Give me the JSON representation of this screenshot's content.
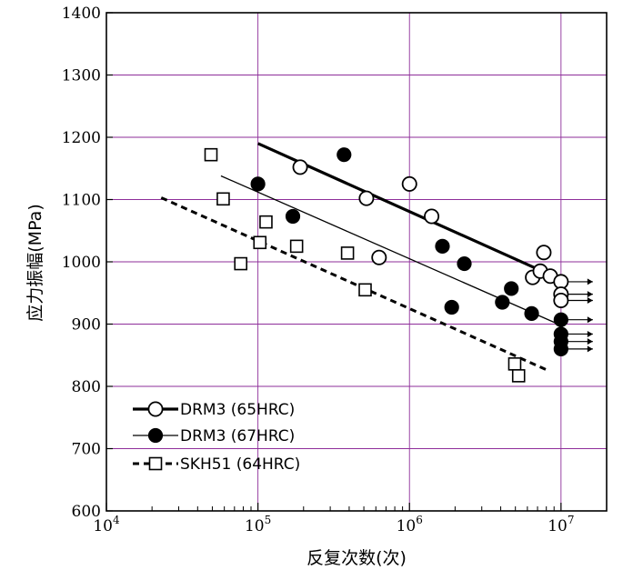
{
  "chart_data": {
    "type": "scatter",
    "xlabel": "反复次数(次)",
    "ylabel": "应力振幅(MPa)",
    "x_scale": "log",
    "xlim": [
      10000,
      20000000
    ],
    "ylim": [
      600,
      1400
    ],
    "x_ticks": [
      {
        "value": 10000,
        "base": "10",
        "exp": "4"
      },
      {
        "value": 100000,
        "base": "10",
        "exp": "5"
      },
      {
        "value": 1000000,
        "base": "10",
        "exp": "6"
      },
      {
        "value": 10000000,
        "base": "10",
        "exp": "7"
      }
    ],
    "y_ticks": [
      "600",
      "700",
      "800",
      "900",
      "1000",
      "1100",
      "1200",
      "1300",
      "1400"
    ],
    "grid": true,
    "legend_position": "bottom-left",
    "runout_x": 10000000,
    "series": [
      {
        "name": "DRM3 (65HRC)",
        "marker": "open-circle",
        "line_style": "thick-solid",
        "points": [
          {
            "x": 190000,
            "y": 1152
          },
          {
            "x": 520000,
            "y": 1102
          },
          {
            "x": 630000,
            "y": 1007
          },
          {
            "x": 1000000,
            "y": 1125
          },
          {
            "x": 1400000,
            "y": 1073
          },
          {
            "x": 6500000,
            "y": 975
          },
          {
            "x": 7300000,
            "y": 985
          },
          {
            "x": 7700000,
            "y": 1015
          },
          {
            "x": 8500000,
            "y": 977
          },
          {
            "x": 10000000,
            "y": 968,
            "runout": true
          },
          {
            "x": 10000000,
            "y": 948,
            "runout": true
          },
          {
            "x": 10000000,
            "y": 938,
            "runout": true
          }
        ],
        "fit": [
          {
            "x": 100000,
            "y": 1190
          },
          {
            "x": 8000000,
            "y": 982
          }
        ]
      },
      {
        "name": "DRM3 (67HRC)",
        "marker": "filled-circle",
        "line_style": "thin-solid",
        "points": [
          {
            "x": 100000,
            "y": 1125
          },
          {
            "x": 170000,
            "y": 1073
          },
          {
            "x": 370000,
            "y": 1172
          },
          {
            "x": 1650000,
            "y": 1025
          },
          {
            "x": 1900000,
            "y": 927
          },
          {
            "x": 2300000,
            "y": 997
          },
          {
            "x": 4100000,
            "y": 935
          },
          {
            "x": 4700000,
            "y": 957
          },
          {
            "x": 6400000,
            "y": 917
          },
          {
            "x": 10000000,
            "y": 907,
            "runout": true
          },
          {
            "x": 10000000,
            "y": 884,
            "runout": true
          },
          {
            "x": 10000000,
            "y": 872,
            "runout": true
          },
          {
            "x": 10000000,
            "y": 860,
            "runout": true
          }
        ],
        "fit": [
          {
            "x": 57000,
            "y": 1138
          },
          {
            "x": 10000000,
            "y": 898
          }
        ]
      },
      {
        "name": "SKH51 (64HRC)",
        "marker": "open-square",
        "line_style": "dashed",
        "points": [
          {
            "x": 49000,
            "y": 1172
          },
          {
            "x": 59000,
            "y": 1101
          },
          {
            "x": 77000,
            "y": 997
          },
          {
            "x": 103000,
            "y": 1031
          },
          {
            "x": 113000,
            "y": 1064
          },
          {
            "x": 180000,
            "y": 1025
          },
          {
            "x": 390000,
            "y": 1014
          },
          {
            "x": 510000,
            "y": 955
          },
          {
            "x": 4950000,
            "y": 836
          },
          {
            "x": 5250000,
            "y": 817
          }
        ],
        "fit": [
          {
            "x": 23000,
            "y": 1103
          },
          {
            "x": 8300000,
            "y": 825
          }
        ]
      }
    ]
  }
}
